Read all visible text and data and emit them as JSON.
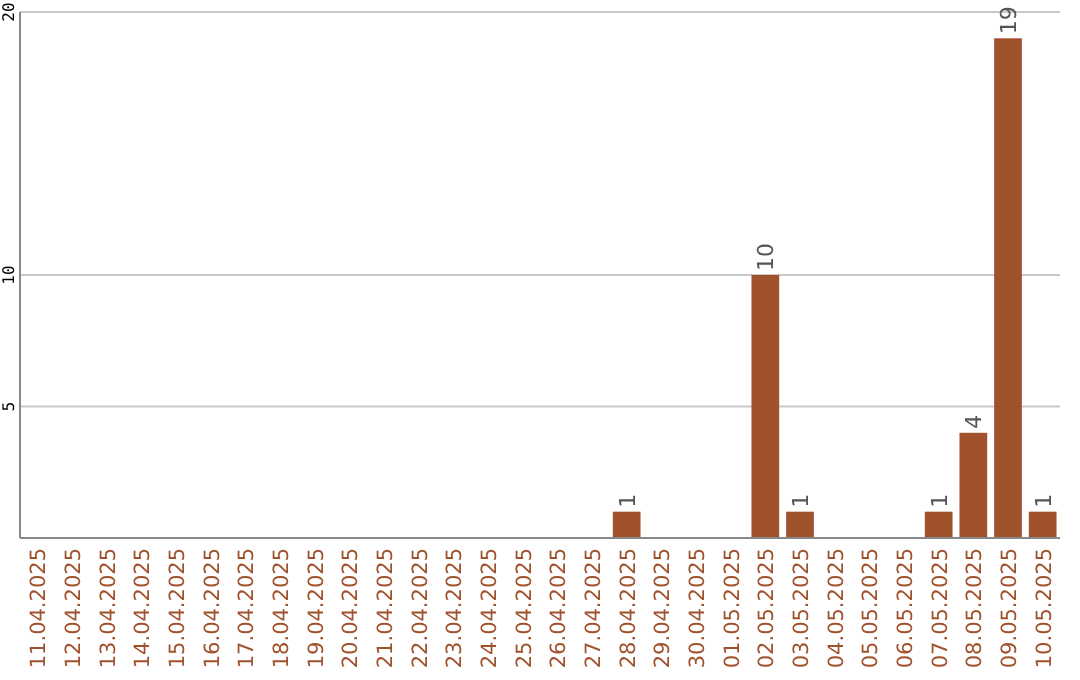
{
  "chart_data": {
    "type": "bar",
    "categories": [
      "11.04.2025",
      "12.04.2025",
      "13.04.2025",
      "14.04.2025",
      "15.04.2025",
      "16.04.2025",
      "17.04.2025",
      "18.04.2025",
      "19.04.2025",
      "20.04.2025",
      "21.04.2025",
      "22.04.2025",
      "23.04.2025",
      "24.04.2025",
      "25.04.2025",
      "26.04.2025",
      "27.04.2025",
      "28.04.2025",
      "29.04.2025",
      "30.04.2025",
      "01.05.2025",
      "02.05.2025",
      "03.05.2025",
      "04.05.2025",
      "05.05.2025",
      "06.05.2025",
      "07.05.2025",
      "08.05.2025",
      "09.05.2025",
      "10.05.2025"
    ],
    "values": [
      0,
      0,
      0,
      0,
      0,
      0,
      0,
      0,
      0,
      0,
      0,
      0,
      0,
      0,
      0,
      0,
      0,
      1,
      0,
      0,
      0,
      10,
      1,
      0,
      0,
      0,
      1,
      4,
      19,
      1
    ],
    "value_labels": [
      null,
      null,
      null,
      null,
      null,
      null,
      null,
      null,
      null,
      null,
      null,
      null,
      null,
      null,
      null,
      null,
      null,
      "1",
      null,
      null,
      null,
      "10",
      "1",
      null,
      null,
      null,
      "1",
      "4",
      "19",
      "1"
    ],
    "color": "#a0522d",
    "ylim": [
      0,
      20
    ],
    "yticks": [
      5,
      10,
      20
    ],
    "grid": "y"
  }
}
